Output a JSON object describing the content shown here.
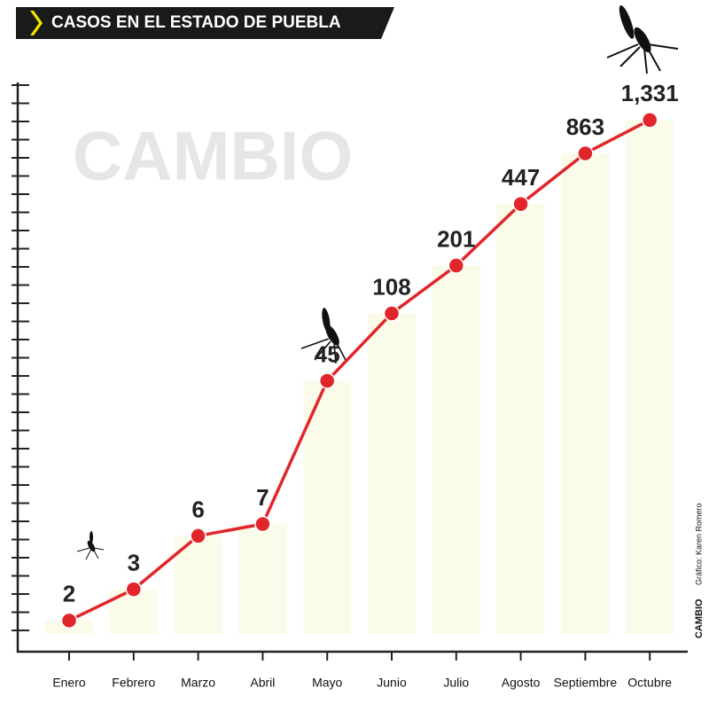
{
  "chart_data": {
    "type": "line",
    "title": "CASOS EN EL ESTADO DE PUEBLA",
    "watermark": "CAMBIO",
    "credit_brand": "CAMBIO",
    "credit": "Gráfico: Karen Romero",
    "categories": [
      "Enero",
      "Febrero",
      "Marzo",
      "Abril",
      "Mayo",
      "Junio",
      "Julio",
      "Agosto",
      "Septiembre",
      "Octubre"
    ],
    "values": [
      2,
      3,
      6,
      7,
      45,
      108,
      201,
      447,
      863,
      1331
    ],
    "value_labels": [
      "2",
      "3",
      "6",
      "7",
      "45",
      "108",
      "201",
      "447",
      "863",
      "1,331"
    ],
    "color": "#e0262b",
    "yscale": "log",
    "ylim": [
      1,
      2000
    ]
  }
}
